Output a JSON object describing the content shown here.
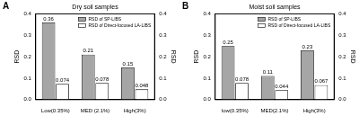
{
  "chart_data": [
    {
      "type": "bar",
      "title": "Dry soil samples",
      "annotations": [
        "A"
      ],
      "categories": [
        "Low(0.35%)",
        "MED (2.1%)",
        "High(3%)"
      ],
      "series": [
        {
          "name": "RSD of SP-LIBS",
          "color": "#a6a6a6",
          "values": [
            0.36,
            0.21,
            0.15
          ]
        },
        {
          "name": "RSD of Direct-focused LA-LIBS",
          "color": "#ffffff",
          "values": [
            0.074,
            0.078,
            0.048
          ]
        }
      ],
      "y_label": "RSD",
      "y2_label": "RSD",
      "ylim": [
        0,
        0.4
      ],
      "yticks": [
        {
          "value": 0,
          "label": "0.0"
        },
        0.1,
        0.2,
        0.3,
        0.4
      ],
      "y2lim": [
        0,
        0.4
      ],
      "y2ticks": [
        {
          "value": 0,
          "label": "0.0"
        },
        0.1,
        0.2,
        0.3,
        0.4
      ],
      "grid": false,
      "legend": "upper right",
      "data_labels": true
    },
    {
      "type": "bar",
      "title": "Moist soil samples",
      "annotations": [
        "B"
      ],
      "categories": [
        "low(0.35%)",
        "MED(2.1%)",
        "High(3%)"
      ],
      "series": [
        {
          "name": "RSD of SP-LIBS",
          "color": "#a6a6a6",
          "values": [
            0.25,
            0.11,
            0.23
          ]
        },
        {
          "name": "RSD of Direct-focused LA-LIBS",
          "color": "#ffffff",
          "values": [
            0.078,
            0.044,
            0.067
          ]
        }
      ],
      "y_label": "RSD",
      "y2_label": "RSD",
      "ylim": [
        0,
        0.4
      ],
      "yticks": [
        {
          "value": 0,
          "label": "0.0"
        },
        0.1,
        0.2,
        0.3,
        0.4
      ],
      "y2lim": [
        0,
        0.4
      ],
      "y2ticks": [
        {
          "value": 0,
          "label": "0.0"
        },
        0.1,
        0.2,
        0.3,
        0.4
      ],
      "grid": false,
      "legend": "upper right",
      "data_labels": true
    }
  ]
}
